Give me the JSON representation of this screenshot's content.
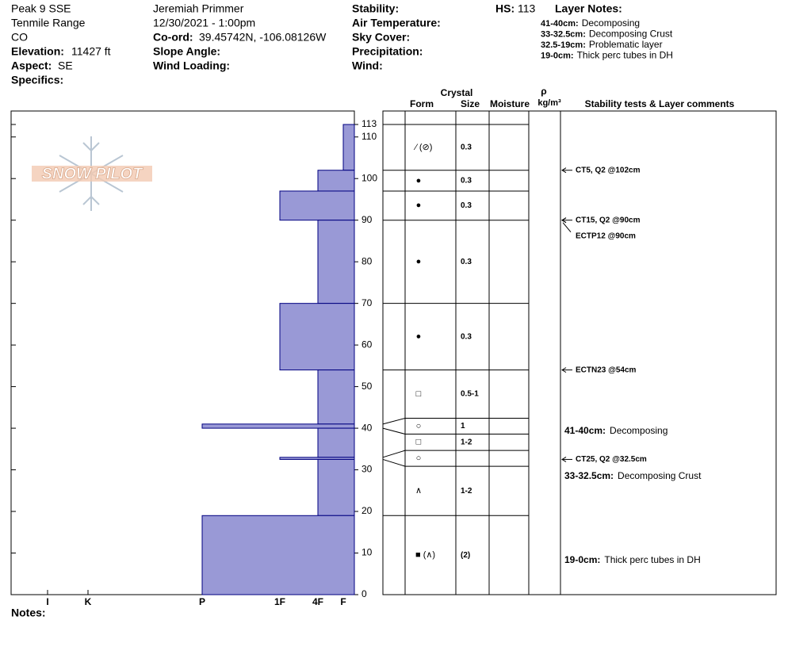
{
  "site": {
    "name": "Peak 9 SSE",
    "range": "Tenmile Range",
    "state": "CO",
    "elevation": {
      "label": "Elevation:",
      "value": "11427 ft"
    },
    "aspect": {
      "label": "Aspect:",
      "value": "SE"
    },
    "specifics": "Specifics:"
  },
  "observer": {
    "name": "Jeremiah Primmer",
    "datetime": "12/30/2021 - 1:00pm",
    "coord": {
      "label": "Co-ord:",
      "value": "39.45742N, -106.08126W"
    },
    "slope_angle": "Slope Angle:",
    "wind_loading": "Wind Loading:"
  },
  "conditions": [
    "Stability:",
    "Air Temperature:",
    "Sky Cover:",
    "Precipitation:",
    "Wind:"
  ],
  "hs": {
    "label": "HS:",
    "value": 113
  },
  "layer_notes": {
    "title": "Layer Notes:",
    "items": [
      {
        "depth": "41-40cm:",
        "text": "Decomposing"
      },
      {
        "depth": "33-32.5cm:",
        "text": "Decomposing Crust"
      },
      {
        "depth": "32.5-19cm:",
        "text": "Problematic layer"
      },
      {
        "depth": "19-0cm:",
        "text": "Thick perc tubes in DH"
      }
    ]
  },
  "logo": "SNOW PILOT",
  "columns": {
    "crystal": "Crystal",
    "form": "Form",
    "size": "Size",
    "moisture": "Moisture",
    "rho": "ρ",
    "density": "kg/m³",
    "comments": "Stability tests & Layer comments"
  },
  "profile": {
    "ylim": [
      0,
      113
    ],
    "yticks": [
      0,
      10,
      20,
      30,
      40,
      50,
      60,
      70,
      80,
      90,
      100,
      110,
      113
    ],
    "hardness_scale": [
      "I",
      "K",
      "P",
      "1F",
      "4F",
      "F"
    ],
    "layers": [
      {
        "top": 113,
        "bottom": 102,
        "hardness": "F",
        "form": "⁄ (⊘)",
        "size": "0.3"
      },
      {
        "top": 102,
        "bottom": 97,
        "hardness": "4F",
        "form": "●",
        "size": "0.3"
      },
      {
        "top": 97,
        "bottom": 90,
        "hardness": "1F",
        "form": "●",
        "size": "0.3"
      },
      {
        "top": 90,
        "bottom": 70,
        "hardness": "4F",
        "form": "●",
        "size": "0.3"
      },
      {
        "top": 70,
        "bottom": 54,
        "hardness": "1F",
        "form": "●",
        "size": "0.3"
      },
      {
        "top": 54,
        "bottom": 41,
        "hardness": "4F",
        "form": "□",
        "size": "0.5-1"
      },
      {
        "top": 41,
        "bottom": 40,
        "hardness": "P",
        "form": "○",
        "size": "1"
      },
      {
        "top": 40,
        "bottom": 33,
        "hardness": "4F",
        "form": "□",
        "size": "1-2"
      },
      {
        "top": 33,
        "bottom": 32.5,
        "hardness": "1F",
        "form": "○"
      },
      {
        "top": 32.5,
        "bottom": 19,
        "hardness": "4F",
        "form": "∧",
        "size": "1-2"
      },
      {
        "top": 19,
        "bottom": 0,
        "hardness": "P",
        "form": "■ (∧)",
        "size": "(2)"
      }
    ],
    "tests": [
      {
        "depth": 102,
        "text": "CT5, Q2 @102cm"
      },
      {
        "depth": 90,
        "text": "CT15, Q2 @90cm"
      },
      {
        "depth": 90,
        "text": "ECTP12 @90cm"
      },
      {
        "depth": 54,
        "text": "ECTN23 @54cm"
      },
      {
        "depth": 32.5,
        "text": "CT25, Q2 @32.5cm"
      }
    ],
    "comments": [
      {
        "depth": "41-40cm:",
        "text": "Decomposing"
      },
      {
        "depth": "33-32.5cm:",
        "text": "Decomposing Crust"
      },
      {
        "depth": "19-0cm:",
        "text": "Thick perc tubes in DH"
      }
    ]
  },
  "notes_label": "Notes:"
}
